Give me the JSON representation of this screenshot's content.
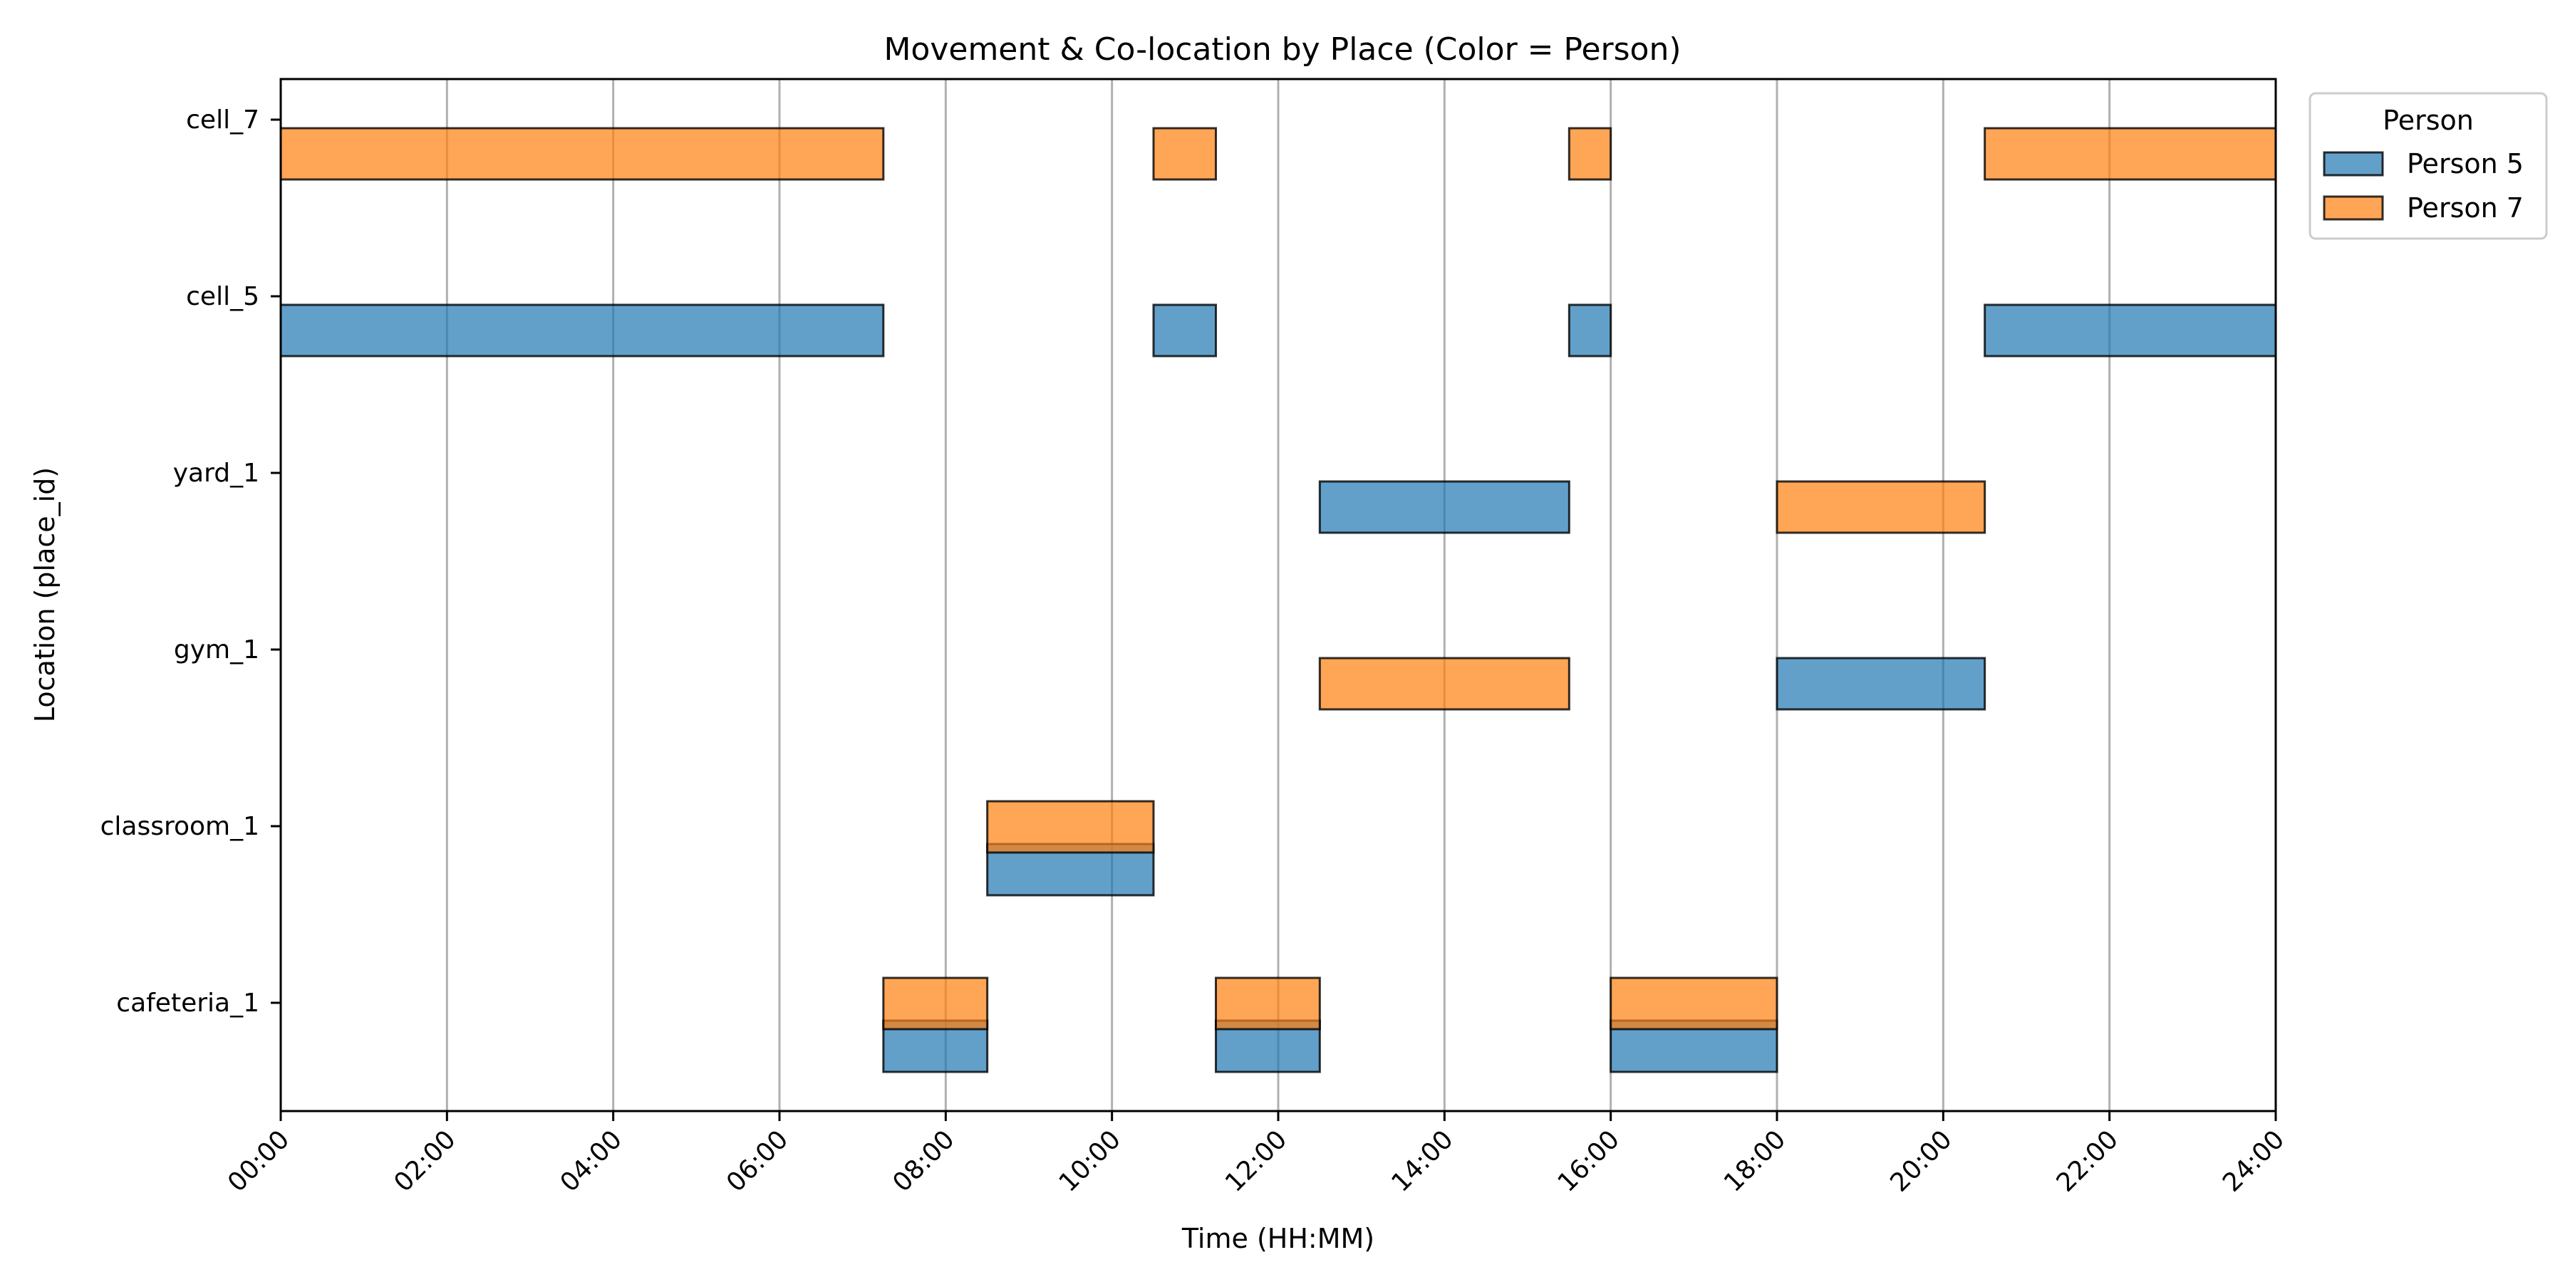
{
  "chart_data": {
    "type": "bar",
    "orientation": "horizontal-timeline",
    "title": "Movement & Co-location by Place (Color = Person)",
    "xlabel": "Time (HH:MM)",
    "ylabel": "Location (place_id)",
    "xlim": [
      0,
      24
    ],
    "x_ticks": [
      "00:00",
      "02:00",
      "04:00",
      "06:00",
      "08:00",
      "10:00",
      "12:00",
      "14:00",
      "16:00",
      "18:00",
      "20:00",
      "22:00",
      "24:00"
    ],
    "categories": [
      "cell_7",
      "cell_5",
      "yard_1",
      "gym_1",
      "classroom_1",
      "cafeteria_1"
    ],
    "grid": "x-major",
    "legend": {
      "title": "Person",
      "placement": "outside-top-right",
      "entries": [
        "Person 5",
        "Person 7"
      ]
    },
    "series": [
      {
        "name": "Person 5",
        "color": "#1f77b4",
        "intervals": [
          {
            "place": "cell_5",
            "start": 0.0,
            "end": 7.25
          },
          {
            "place": "cafeteria_1",
            "start": 7.25,
            "end": 8.5
          },
          {
            "place": "classroom_1",
            "start": 8.5,
            "end": 10.5
          },
          {
            "place": "cell_5",
            "start": 10.5,
            "end": 11.25
          },
          {
            "place": "cafeteria_1",
            "start": 11.25,
            "end": 12.5
          },
          {
            "place": "yard_1",
            "start": 12.5,
            "end": 15.5
          },
          {
            "place": "cell_5",
            "start": 15.5,
            "end": 16.0
          },
          {
            "place": "cafeteria_1",
            "start": 16.0,
            "end": 18.0
          },
          {
            "place": "gym_1",
            "start": 18.0,
            "end": 20.5
          },
          {
            "place": "cell_5",
            "start": 20.5,
            "end": 24.0
          }
        ]
      },
      {
        "name": "Person 7",
        "color": "#ff7f0e",
        "intervals": [
          {
            "place": "cell_7",
            "start": 0.0,
            "end": 7.25
          },
          {
            "place": "cafeteria_1",
            "start": 7.25,
            "end": 8.5
          },
          {
            "place": "classroom_1",
            "start": 8.5,
            "end": 10.5
          },
          {
            "place": "cell_7",
            "start": 10.5,
            "end": 11.25
          },
          {
            "place": "cafeteria_1",
            "start": 11.25,
            "end": 12.5
          },
          {
            "place": "gym_1",
            "start": 12.5,
            "end": 15.5
          },
          {
            "place": "cell_7",
            "start": 15.5,
            "end": 16.0
          },
          {
            "place": "cafeteria_1",
            "start": 16.0,
            "end": 18.0
          },
          {
            "place": "yard_1",
            "start": 18.0,
            "end": 20.5
          },
          {
            "place": "cell_7",
            "start": 20.5,
            "end": 24.0
          }
        ]
      }
    ]
  }
}
